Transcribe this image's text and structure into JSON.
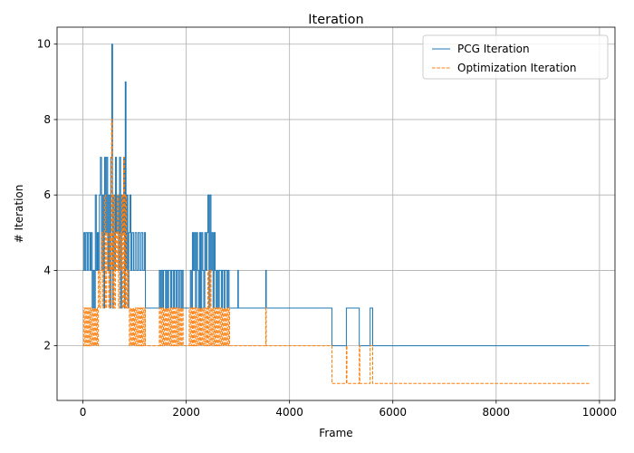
{
  "chart_data": {
    "type": "line",
    "title": "Iteration",
    "xlabel": "Frame",
    "ylabel": "# Iteration",
    "xlim": [
      -500,
      10300
    ],
    "ylim": [
      0.55,
      10.45
    ],
    "xticks": [
      0,
      2000,
      4000,
      6000,
      8000,
      10000
    ],
    "yticks": [
      2,
      4,
      6,
      8,
      10
    ],
    "grid": true,
    "legend_position": "top-right",
    "series": [
      {
        "name": "PCG Iteration",
        "color": "#1f77b4",
        "style": "solid",
        "points": [
          [
            0,
            4
          ],
          [
            20,
            5
          ],
          [
            40,
            4
          ],
          [
            60,
            5
          ],
          [
            90,
            4
          ],
          [
            110,
            5
          ],
          [
            140,
            4
          ],
          [
            160,
            5
          ],
          [
            180,
            3
          ],
          [
            200,
            4
          ],
          [
            220,
            3
          ],
          [
            240,
            6
          ],
          [
            260,
            4
          ],
          [
            280,
            5
          ],
          [
            300,
            4
          ],
          [
            320,
            6
          ],
          [
            340,
            7
          ],
          [
            360,
            4
          ],
          [
            380,
            6
          ],
          [
            400,
            3
          ],
          [
            420,
            7
          ],
          [
            440,
            5
          ],
          [
            460,
            7
          ],
          [
            480,
            4
          ],
          [
            500,
            6
          ],
          [
            520,
            3
          ],
          [
            540,
            7
          ],
          [
            560,
            10
          ],
          [
            575,
            3
          ],
          [
            590,
            6
          ],
          [
            610,
            4
          ],
          [
            630,
            7
          ],
          [
            650,
            5
          ],
          [
            670,
            6
          ],
          [
            690,
            4
          ],
          [
            710,
            7
          ],
          [
            730,
            3
          ],
          [
            750,
            6
          ],
          [
            770,
            5
          ],
          [
            790,
            7
          ],
          [
            805,
            3
          ],
          [
            820,
            9
          ],
          [
            835,
            4
          ],
          [
            850,
            6
          ],
          [
            870,
            3
          ],
          [
            890,
            5
          ],
          [
            910,
            6
          ],
          [
            930,
            4
          ],
          [
            950,
            5
          ],
          [
            980,
            4
          ],
          [
            1010,
            5
          ],
          [
            1040,
            4
          ],
          [
            1070,
            5
          ],
          [
            1100,
            4
          ],
          [
            1130,
            5
          ],
          [
            1160,
            4
          ],
          [
            1190,
            5
          ],
          [
            1210,
            3
          ],
          [
            1480,
            4
          ],
          [
            1500,
            3
          ],
          [
            1520,
            4
          ],
          [
            1540,
            3
          ],
          [
            1560,
            4
          ],
          [
            1600,
            3
          ],
          [
            1620,
            4
          ],
          [
            1640,
            3
          ],
          [
            1660,
            4
          ],
          [
            1700,
            3
          ],
          [
            1720,
            4
          ],
          [
            1750,
            3
          ],
          [
            1770,
            4
          ],
          [
            1800,
            3
          ],
          [
            1820,
            4
          ],
          [
            1850,
            3
          ],
          [
            1870,
            4
          ],
          [
            1900,
            3
          ],
          [
            1920,
            4
          ],
          [
            1940,
            3
          ],
          [
            2080,
            4
          ],
          [
            2100,
            3
          ],
          [
            2120,
            5
          ],
          [
            2140,
            4
          ],
          [
            2160,
            5
          ],
          [
            2180,
            3
          ],
          [
            2200,
            5
          ],
          [
            2220,
            4
          ],
          [
            2240,
            3
          ],
          [
            2260,
            5
          ],
          [
            2280,
            3
          ],
          [
            2300,
            5
          ],
          [
            2320,
            4
          ],
          [
            2340,
            3
          ],
          [
            2360,
            5
          ],
          [
            2380,
            4
          ],
          [
            2400,
            5
          ],
          [
            2420,
            6
          ],
          [
            2440,
            3
          ],
          [
            2460,
            6
          ],
          [
            2480,
            4
          ],
          [
            2500,
            5
          ],
          [
            2520,
            3
          ],
          [
            2540,
            5
          ],
          [
            2560,
            4
          ],
          [
            2580,
            3
          ],
          [
            2600,
            4
          ],
          [
            2620,
            3
          ],
          [
            2640,
            4
          ],
          [
            2680,
            3
          ],
          [
            2700,
            4
          ],
          [
            2730,
            3
          ],
          [
            2750,
            4
          ],
          [
            2790,
            3
          ],
          [
            2810,
            4
          ],
          [
            2830,
            3
          ],
          [
            3000,
            4
          ],
          [
            3010,
            3
          ],
          [
            3540,
            4
          ],
          [
            3550,
            3
          ],
          [
            4820,
            2
          ],
          [
            5100,
            3
          ],
          [
            5350,
            2
          ],
          [
            5560,
            3
          ],
          [
            5610,
            2
          ],
          [
            9800,
            2
          ]
        ]
      },
      {
        "name": "Optimization Iteration",
        "color": "#ff7f0e",
        "style": "dashed",
        "points": [
          [
            0,
            2
          ],
          [
            20,
            3
          ],
          [
            40,
            2
          ],
          [
            60,
            3
          ],
          [
            80,
            2
          ],
          [
            100,
            3
          ],
          [
            120,
            2
          ],
          [
            140,
            3
          ],
          [
            160,
            2
          ],
          [
            180,
            3
          ],
          [
            200,
            2
          ],
          [
            220,
            3
          ],
          [
            240,
            2
          ],
          [
            260,
            3
          ],
          [
            280,
            2
          ],
          [
            300,
            4
          ],
          [
            320,
            3
          ],
          [
            340,
            4
          ],
          [
            360,
            5
          ],
          [
            380,
            3
          ],
          [
            400,
            4
          ],
          [
            420,
            6
          ],
          [
            440,
            3
          ],
          [
            460,
            5
          ],
          [
            480,
            4
          ],
          [
            500,
            3
          ],
          [
            520,
            5
          ],
          [
            540,
            4
          ],
          [
            555,
            8
          ],
          [
            570,
            3
          ],
          [
            590,
            6
          ],
          [
            610,
            3
          ],
          [
            630,
            5
          ],
          [
            650,
            4
          ],
          [
            670,
            6
          ],
          [
            690,
            3
          ],
          [
            710,
            5
          ],
          [
            730,
            4
          ],
          [
            750,
            6
          ],
          [
            770,
            3
          ],
          [
            790,
            7
          ],
          [
            805,
            3
          ],
          [
            820,
            6
          ],
          [
            840,
            3
          ],
          [
            860,
            4
          ],
          [
            880,
            3
          ],
          [
            900,
            2
          ],
          [
            920,
            3
          ],
          [
            940,
            2
          ],
          [
            960,
            3
          ],
          [
            980,
            2
          ],
          [
            1000,
            3
          ],
          [
            1020,
            2
          ],
          [
            1040,
            3
          ],
          [
            1060,
            2
          ],
          [
            1080,
            3
          ],
          [
            1100,
            2
          ],
          [
            1120,
            3
          ],
          [
            1140,
            2
          ],
          [
            1160,
            3
          ],
          [
            1180,
            2
          ],
          [
            1200,
            3
          ],
          [
            1210,
            2
          ],
          [
            1480,
            3
          ],
          [
            1500,
            2
          ],
          [
            1520,
            3
          ],
          [
            1540,
            2
          ],
          [
            1560,
            3
          ],
          [
            1580,
            2
          ],
          [
            1600,
            3
          ],
          [
            1620,
            2
          ],
          [
            1640,
            3
          ],
          [
            1660,
            2
          ],
          [
            1680,
            3
          ],
          [
            1700,
            2
          ],
          [
            1720,
            3
          ],
          [
            1740,
            2
          ],
          [
            1760,
            3
          ],
          [
            1780,
            2
          ],
          [
            1800,
            3
          ],
          [
            1820,
            2
          ],
          [
            1840,
            3
          ],
          [
            1860,
            2
          ],
          [
            1880,
            3
          ],
          [
            1900,
            2
          ],
          [
            1920,
            3
          ],
          [
            1940,
            2
          ],
          [
            2060,
            3
          ],
          [
            2080,
            2
          ],
          [
            2100,
            3
          ],
          [
            2120,
            2
          ],
          [
            2140,
            3
          ],
          [
            2160,
            2
          ],
          [
            2180,
            3
          ],
          [
            2200,
            2
          ],
          [
            2220,
            3
          ],
          [
            2240,
            2
          ],
          [
            2260,
            3
          ],
          [
            2280,
            2
          ],
          [
            2300,
            3
          ],
          [
            2320,
            2
          ],
          [
            2340,
            3
          ],
          [
            2360,
            2
          ],
          [
            2380,
            3
          ],
          [
            2400,
            2
          ],
          [
            2420,
            4
          ],
          [
            2440,
            2
          ],
          [
            2460,
            4
          ],
          [
            2480,
            2
          ],
          [
            2500,
            3
          ],
          [
            2520,
            2
          ],
          [
            2540,
            3
          ],
          [
            2560,
            2
          ],
          [
            2580,
            3
          ],
          [
            2600,
            2
          ],
          [
            2620,
            3
          ],
          [
            2640,
            2
          ],
          [
            2660,
            3
          ],
          [
            2680,
            2
          ],
          [
            2700,
            3
          ],
          [
            2720,
            2
          ],
          [
            2740,
            3
          ],
          [
            2760,
            2
          ],
          [
            2780,
            3
          ],
          [
            2800,
            2
          ],
          [
            2820,
            3
          ],
          [
            2840,
            2
          ],
          [
            3540,
            3
          ],
          [
            3550,
            2
          ],
          [
            4820,
            1
          ],
          [
            5100,
            2
          ],
          [
            5110,
            1
          ],
          [
            5350,
            2
          ],
          [
            5360,
            1
          ],
          [
            5560,
            2
          ],
          [
            5610,
            1
          ],
          [
            9800,
            1
          ]
        ]
      }
    ]
  }
}
